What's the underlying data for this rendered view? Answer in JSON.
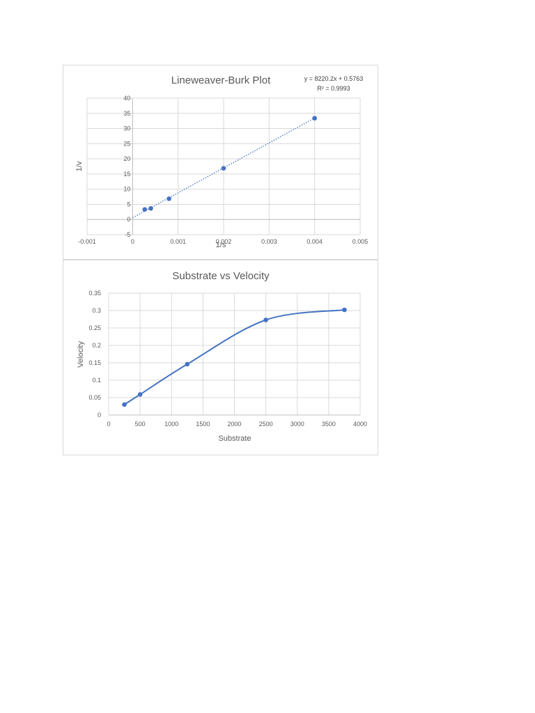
{
  "chart_data": [
    {
      "type": "scatter",
      "title": "Lineweaver-Burk Plot",
      "xlabel": "1/s",
      "ylabel": "1/v",
      "xlim": [
        -0.001,
        0.005
      ],
      "ylim": [
        -5,
        40
      ],
      "x_ticks": [
        "-0.001",
        "0",
        "0.001",
        "0.002",
        "0.003",
        "0.004",
        "0.005"
      ],
      "y_ticks": [
        "-5",
        "0",
        "5",
        "10",
        "15",
        "20",
        "25",
        "30",
        "35",
        "40"
      ],
      "series": [
        {
          "points": [
            {
              "x": 0.000267,
              "y": 3.32
            },
            {
              "x": 0.0004,
              "y": 3.66
            },
            {
              "x": 0.0008,
              "y": 6.85
            },
            {
              "x": 0.002,
              "y": 16.9
            },
            {
              "x": 0.004,
              "y": 33.4
            }
          ],
          "color": "#4472c4"
        }
      ],
      "trendline": {
        "type": "linear",
        "style": "dotted",
        "slope": 8220.2,
        "intercept": 0.5763,
        "x_range": [
          0,
          0.004
        ],
        "equation": "y = 8220.2x + 0.5763",
        "r_squared": "R² = 0.9993"
      },
      "grid": true,
      "legend": "none"
    },
    {
      "type": "line",
      "title": "Substrate vs Velocity",
      "xlabel": "Substrate",
      "ylabel": "Velocity",
      "xlim": [
        0,
        4000
      ],
      "ylim": [
        0,
        0.35
      ],
      "x_ticks": [
        "0",
        "500",
        "1000",
        "1500",
        "2000",
        "2500",
        "3000",
        "3500",
        "4000"
      ],
      "y_ticks": [
        "0",
        "0.05",
        "0.1",
        "0.15",
        "0.2",
        "0.25",
        "0.3",
        "0.35"
      ],
      "series": [
        {
          "smooth": true,
          "color": "#4472c4",
          "points": [
            {
              "x": 250,
              "y": 0.03
            },
            {
              "x": 500,
              "y": 0.059
            },
            {
              "x": 1250,
              "y": 0.146
            },
            {
              "x": 2500,
              "y": 0.273
            },
            {
              "x": 3750,
              "y": 0.302
            }
          ]
        }
      ],
      "grid": true,
      "legend": "none"
    }
  ]
}
